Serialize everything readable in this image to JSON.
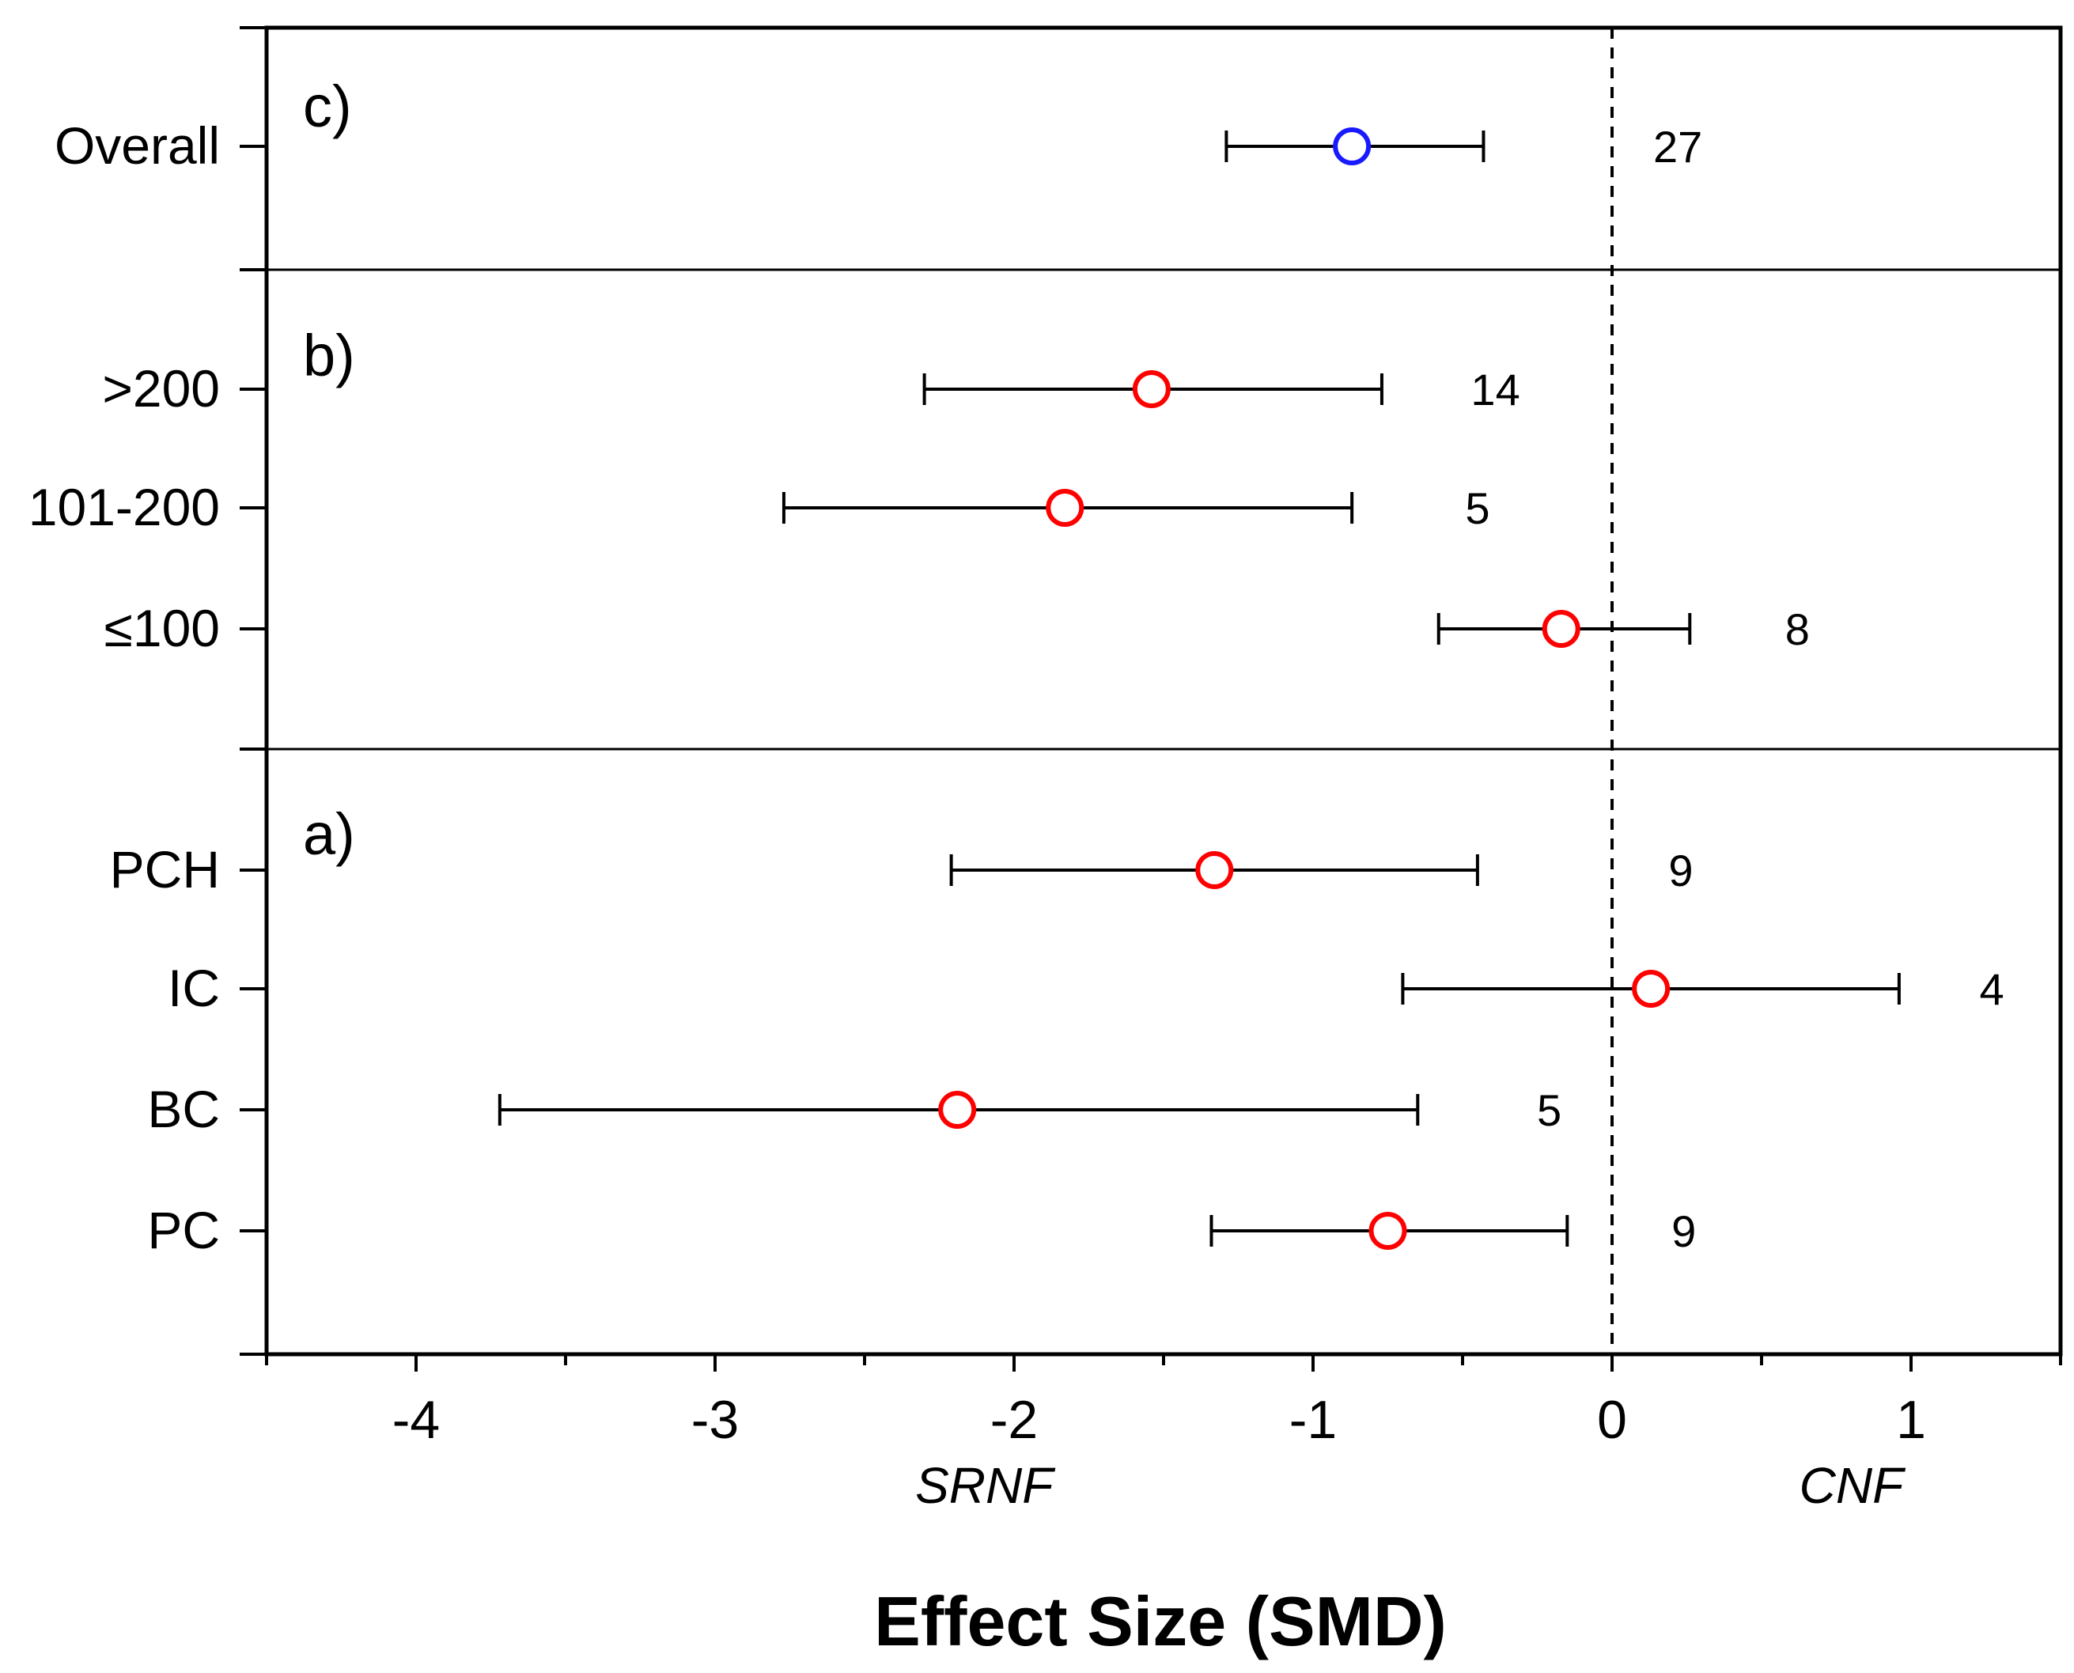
{
  "chart_data": {
    "type": "forest",
    "xlabel": "Effect Size (SMD)",
    "xlim": [
      -4.5,
      1.5
    ],
    "x_ticks": [
      -4,
      -3,
      -2,
      -1,
      0,
      1
    ],
    "x_tick_labels": [
      "-4",
      "-3",
      "-2",
      "-1",
      "0",
      "1"
    ],
    "reference_line": 0,
    "side_labels": {
      "left": "SRNF",
      "right": "CNF"
    },
    "colors": {
      "overall": "#1a1aff",
      "subgroup": "#ff0000",
      "axis": "#000000"
    },
    "panels": [
      {
        "label": "c)",
        "rows": [
          {
            "name": "Overall",
            "mean": -0.87,
            "lower": -1.29,
            "upper": -0.43,
            "n": "27",
            "n_x": 0.22,
            "color": "overall"
          }
        ]
      },
      {
        "label": "b)",
        "rows": [
          {
            "name": ">200",
            "mean": -1.54,
            "lower": -2.3,
            "upper": -0.77,
            "n": "14",
            "n_x": -0.39,
            "color": "subgroup"
          },
          {
            "name": "101-200",
            "mean": -1.83,
            "lower": -2.77,
            "upper": -0.87,
            "n": "5",
            "n_x": -0.45,
            "color": "subgroup"
          },
          {
            "name": "≤100",
            "mean": -0.17,
            "lower": -0.58,
            "upper": 0.26,
            "n": "8",
            "n_x": 0.62,
            "color": "subgroup"
          }
        ]
      },
      {
        "label": "a)",
        "rows": [
          {
            "name": "PCH",
            "mean": -1.33,
            "lower": -2.21,
            "upper": -0.45,
            "n": "9",
            "n_x": 0.23,
            "color": "subgroup"
          },
          {
            "name": "IC",
            "mean": 0.13,
            "lower": -0.7,
            "upper": 0.96,
            "n": "4",
            "n_x": 1.27,
            "color": "subgroup"
          },
          {
            "name": "BC",
            "mean": -2.19,
            "lower": -3.72,
            "upper": -0.65,
            "n": "5",
            "n_x": -0.21,
            "color": "subgroup"
          },
          {
            "name": "PC",
            "mean": -0.75,
            "lower": -1.34,
            "upper": -0.15,
            "n": "9",
            "n_x": 0.24,
            "color": "subgroup"
          }
        ]
      }
    ]
  }
}
